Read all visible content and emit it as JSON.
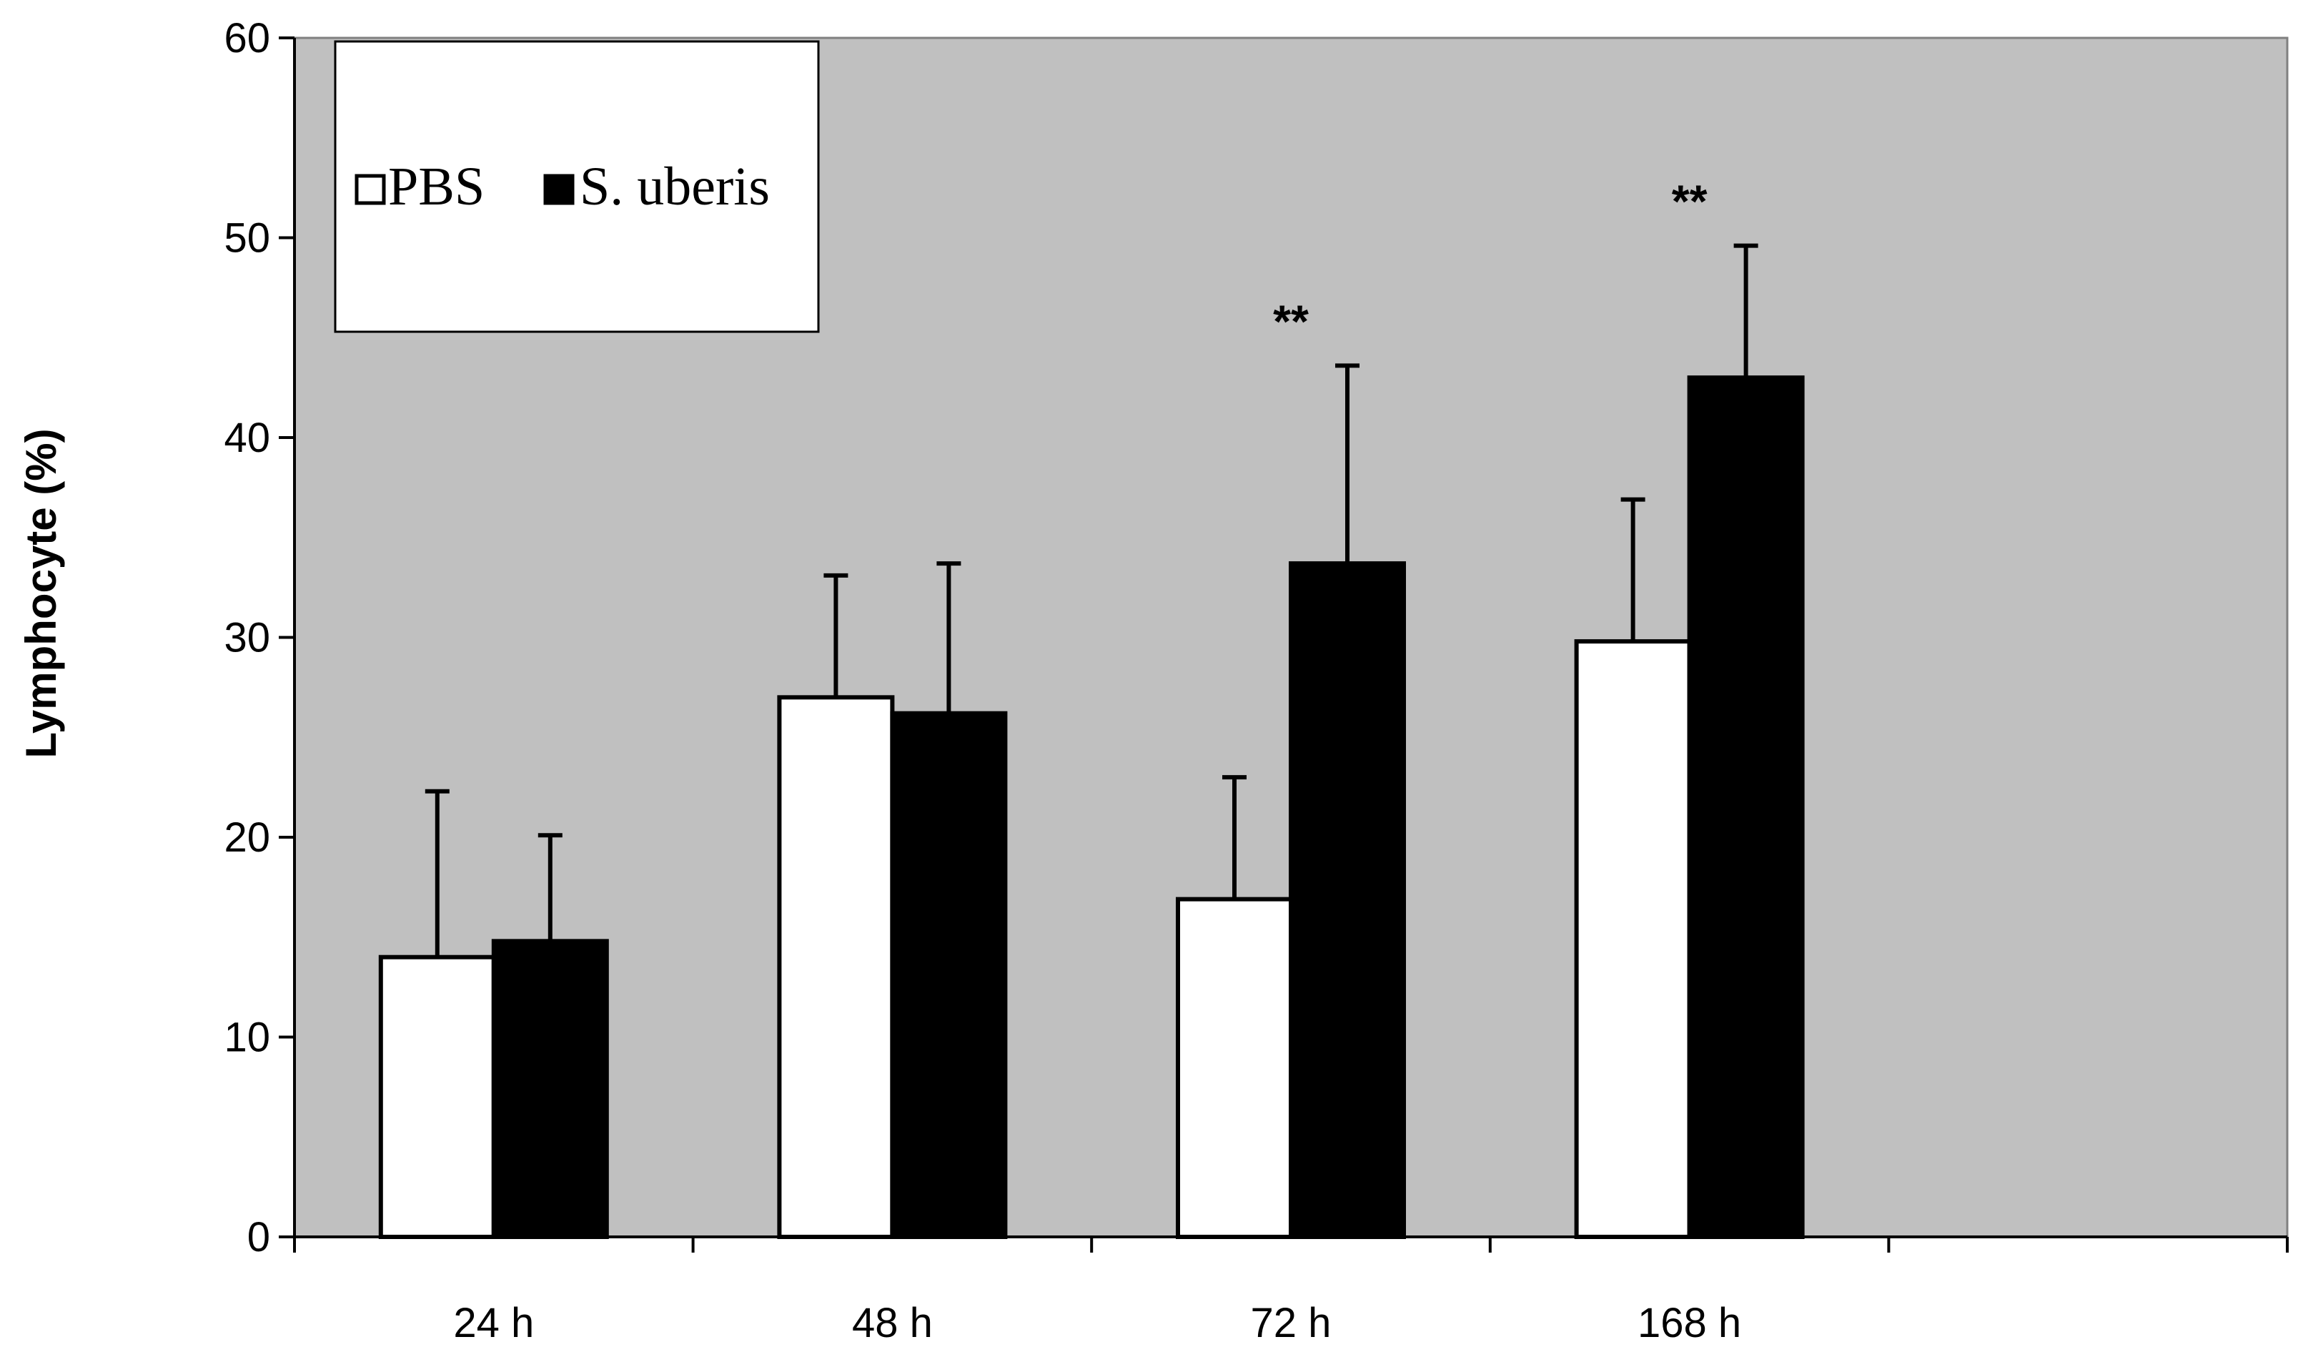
{
  "chart_data": {
    "type": "bar",
    "title": "",
    "xlabel": "",
    "ylabel": "Lymphocyte (%)",
    "ylim": [
      0,
      60
    ],
    "yticks": [
      0,
      10,
      20,
      30,
      40,
      50,
      60
    ],
    "categories": [
      "24 h",
      "48 h",
      "72 h",
      "168 h"
    ],
    "series": [
      {
        "name": "PBS",
        "color": "#ffffff",
        "values": [
          14.0,
          27.0,
          16.9,
          29.8
        ],
        "errors": [
          8.3,
          6.1,
          6.1,
          7.1
        ]
      },
      {
        "name": "S. uberis",
        "color": "#000000",
        "values": [
          14.8,
          26.2,
          33.7,
          43.0
        ],
        "errors": [
          5.3,
          7.5,
          9.9,
          6.6
        ]
      }
    ],
    "annotations": [
      {
        "category": "72 h",
        "text": "**"
      },
      {
        "category": "168 h",
        "text": "**"
      }
    ],
    "plot_background": "#c0c0c0",
    "legend": "top-left"
  }
}
